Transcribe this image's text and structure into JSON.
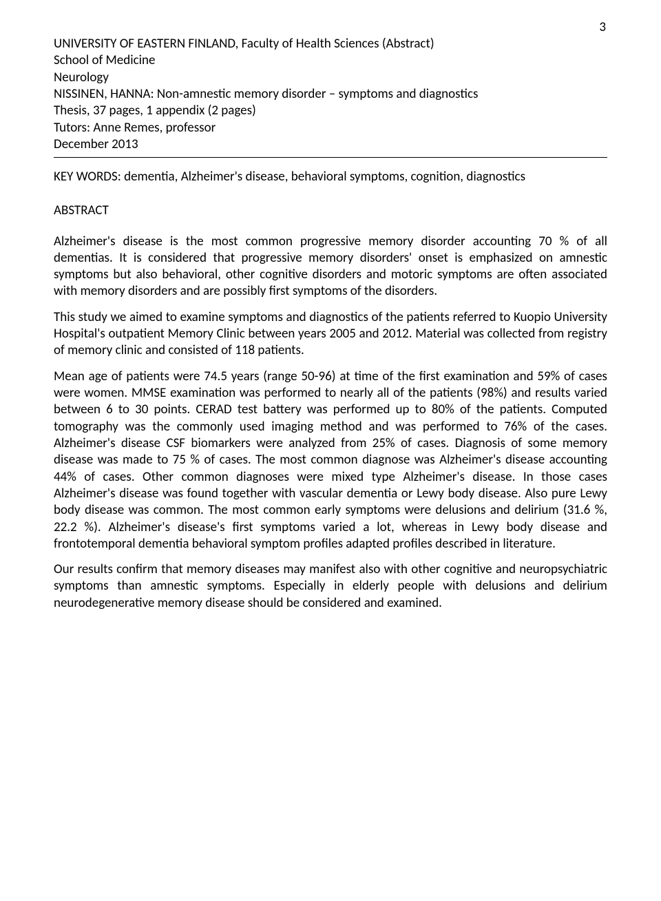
{
  "page_number": "3",
  "header": {
    "line1": "UNIVERSITY OF EASTERN FINLAND, Faculty of Health Sciences (Abstract)",
    "line2": "School of Medicine",
    "line3": "Neurology",
    "line4": "NISSINEN, HANNA: Non-amnestic memory disorder – symptoms and diagnostics",
    "line5": "Thesis, 37 pages, 1 appendix (2 pages)",
    "line6": "Tutors: Anne Remes, professor",
    "line7": "December 2013"
  },
  "keywords": "KEY WORDS: dementia, Alzheimer's disease, behavioral symptoms, cognition, diagnostics",
  "abstract_label": "ABSTRACT",
  "paragraphs": {
    "p1": "Alzheimer's disease is the most common progressive memory disorder accounting 70 % of all dementias. It is considered that progressive memory disorders' onset is emphasized on amnestic symptoms but also behavioral, other cognitive disorders and motoric symptoms are often associated with memory disorders and are possibly first symptoms of the disorders.",
    "p2": "This study we aimed to examine symptoms and diagnostics of the patients referred to Kuopio University Hospital's outpatient Memory Clinic between years 2005 and 2012. Material was collected from registry of memory clinic and consisted of 118 patients.",
    "p3": "Mean age of patients were 74.5 years (range 50-96) at time of the first examination and 59% of cases were women. MMSE examination was performed to nearly all of the patients (98%) and results varied between 6 to 30 points. CERAD test battery was performed up to 80% of the patients. Computed tomography was the commonly used imaging method and was performed to 76% of the cases. Alzheimer's disease CSF biomarkers were analyzed from 25% of cases. Diagnosis of some memory disease was made to 75 % of cases. The most common diagnose was Alzheimer's disease accounting 44% of cases. Other common diagnoses were mixed type Alzheimer's disease. In those cases Alzheimer's disease was found together with vascular dementia or Lewy body disease. Also pure Lewy body disease was common. The most common early symptoms were delusions and delirium (31.6 %, 22.2 %). Alzheimer's disease's first symptoms varied a lot, whereas in Lewy body disease and frontotemporal dementia behavioral symptom profiles adapted profiles described in literature.",
    "p4": "Our results confirm that memory diseases may manifest also with other cognitive and neuropsychiatric symptoms than amnestic symptoms. Especially in elderly people with delusions and delirium neurodegenerative memory disease should be considered and examined."
  }
}
